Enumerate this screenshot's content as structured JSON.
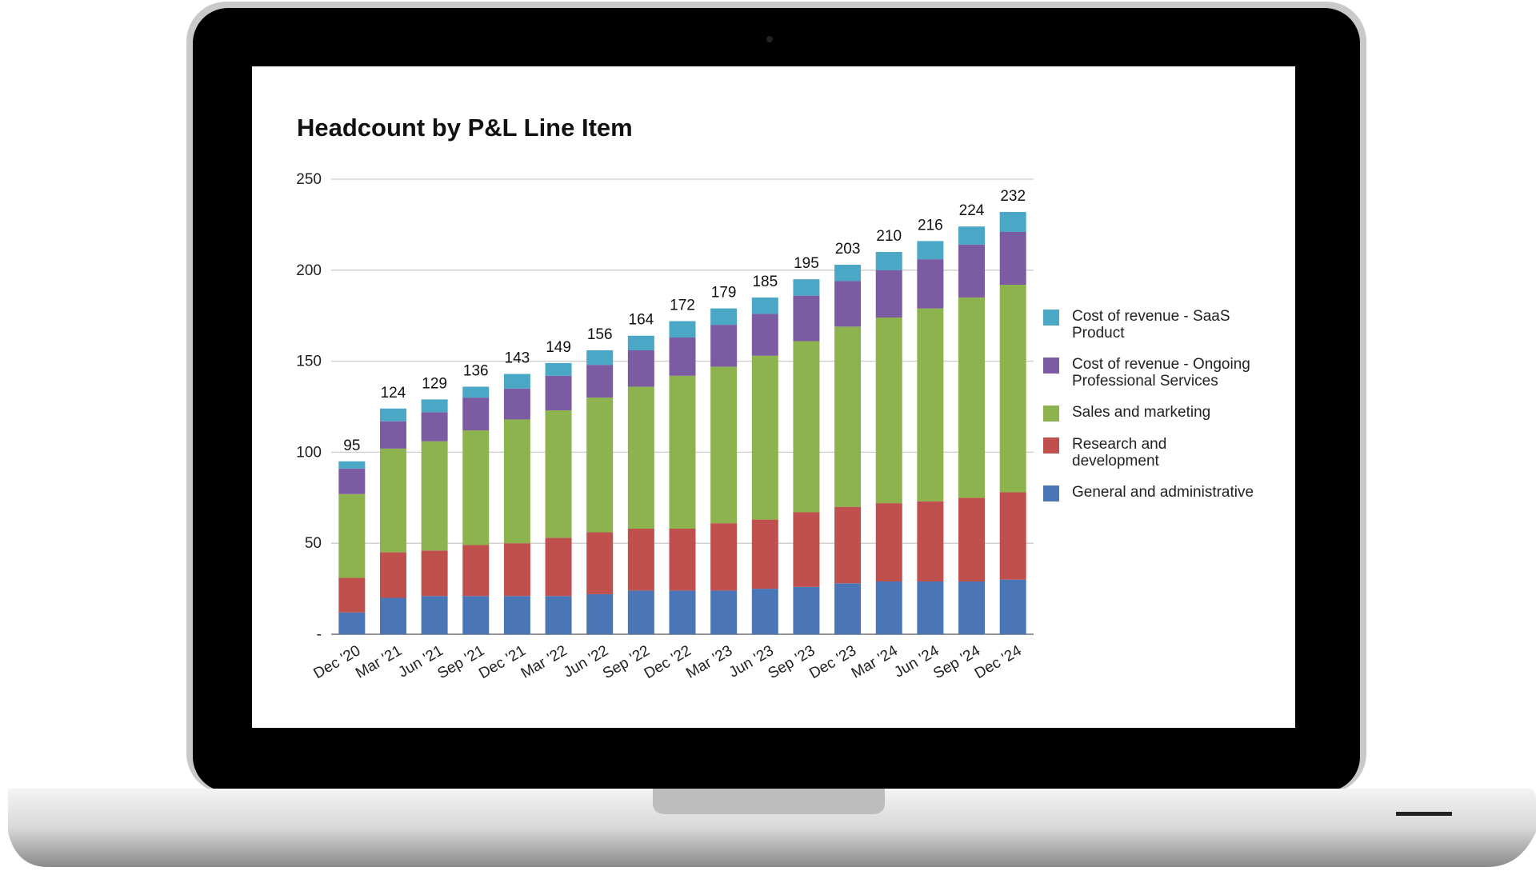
{
  "chart_data": {
    "type": "stacked-bar",
    "title": "Headcount by P&L Line Item",
    "categories": [
      "Dec '20",
      "Mar '21",
      "Jun '21",
      "Sep '21",
      "Dec '21",
      "Mar '22",
      "Jun '22",
      "Sep '22",
      "Dec '22",
      "Mar '23",
      "Jun '23",
      "Sep '23",
      "Dec '23",
      "Mar '24",
      "Jun '24",
      "Sep '24",
      "Dec '24"
    ],
    "series": [
      {
        "name": "General and administrative",
        "color": "#4a76b8",
        "values": [
          12,
          20,
          21,
          21,
          21,
          21,
          22,
          24,
          24,
          24,
          25,
          26,
          28,
          29,
          29,
          29,
          30
        ]
      },
      {
        "name": "Research and development",
        "color": "#c0504d",
        "values": [
          19,
          25,
          25,
          28,
          29,
          32,
          34,
          34,
          34,
          37,
          38,
          41,
          42,
          43,
          44,
          46,
          48
        ]
      },
      {
        "name": "Sales and marketing",
        "color": "#8db34e",
        "values": [
          46,
          57,
          60,
          63,
          68,
          70,
          74,
          78,
          84,
          86,
          90,
          94,
          99,
          102,
          106,
          110,
          114
        ]
      },
      {
        "name": "Cost of revenue - Ongoing Professional Services",
        "color": "#7b5ba1",
        "values": [
          14,
          15,
          16,
          18,
          17,
          19,
          18,
          20,
          21,
          23,
          23,
          25,
          25,
          26,
          27,
          29,
          29
        ]
      },
      {
        "name": "Cost of revenue - SaaS Product",
        "color": "#4aa7c6",
        "values": [
          4,
          7,
          7,
          6,
          8,
          7,
          8,
          8,
          9,
          9,
          9,
          9,
          9,
          10,
          10,
          10,
          11
        ]
      }
    ],
    "totals": [
      95,
      124,
      129,
      136,
      143,
      149,
      156,
      164,
      172,
      179,
      185,
      195,
      203,
      210,
      216,
      224,
      232
    ],
    "ylim": [
      0,
      250
    ],
    "yticks": [
      {
        "value": 0,
        "label": "-"
      },
      50,
      100,
      150,
      200,
      250
    ],
    "grid": true
  }
}
